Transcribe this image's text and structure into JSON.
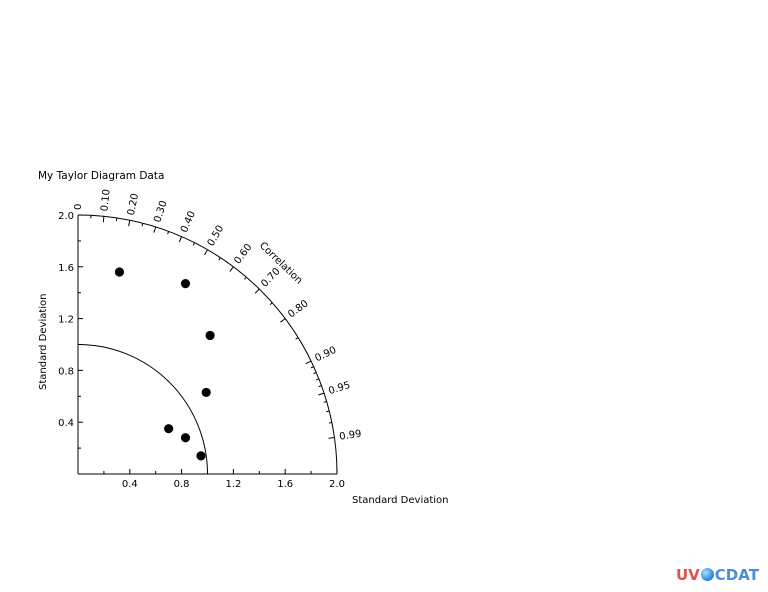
{
  "chart_data": {
    "type": "scatter",
    "diagram": "taylor",
    "title": "My Taylor Diagram Data",
    "xlabel": "Standard Deviation",
    "ylabel": "Standard Deviation",
    "arc_label": "Correlation",
    "max_std": 2.0,
    "reference_std": 1.0,
    "x_ticks": [
      "0.4",
      "0.8",
      "1.2",
      "1.6",
      "2.0"
    ],
    "y_ticks": [
      "0.4",
      "0.8",
      "1.2",
      "1.6",
      "2.0"
    ],
    "correlation_ticks": [
      {
        "value": 0.0,
        "label": "0"
      },
      {
        "value": 0.1,
        "label": "0.10"
      },
      {
        "value": 0.2,
        "label": "0.20"
      },
      {
        "value": 0.3,
        "label": "0.30"
      },
      {
        "value": 0.4,
        "label": "0.40"
      },
      {
        "value": 0.5,
        "label": "0.50"
      },
      {
        "value": 0.6,
        "label": "0.60"
      },
      {
        "value": 0.7,
        "label": "0.70"
      },
      {
        "value": 0.8,
        "label": "0.80"
      },
      {
        "value": 0.9,
        "label": "0.90"
      },
      {
        "value": 0.95,
        "label": "0.95"
      },
      {
        "value": 0.99,
        "label": "0.99"
      }
    ],
    "points": [
      {
        "x": 0.32,
        "y": 1.56
      },
      {
        "x": 0.83,
        "y": 1.47
      },
      {
        "x": 1.02,
        "y": 1.07
      },
      {
        "x": 0.99,
        "y": 0.63
      },
      {
        "x": 0.7,
        "y": 0.35
      },
      {
        "x": 0.83,
        "y": 0.28
      },
      {
        "x": 0.95,
        "y": 0.14
      }
    ]
  },
  "logo": {
    "uv": "UV",
    "cdat": "CDAT"
  }
}
